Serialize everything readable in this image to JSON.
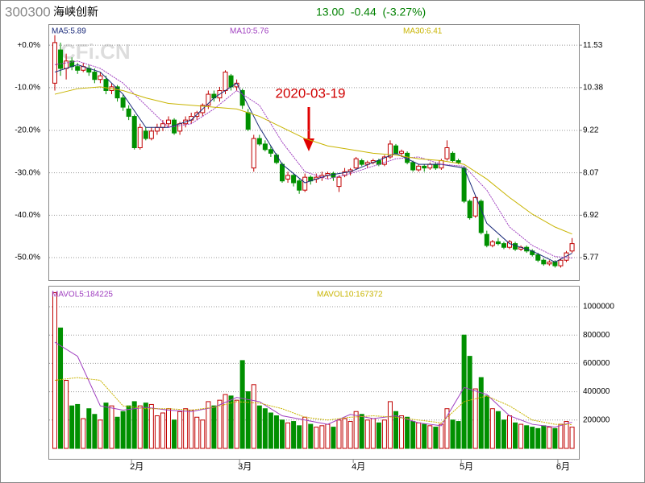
{
  "chart_data": {
    "type": "candlestick",
    "code": "300300",
    "name": "海峡创新",
    "quote": "13.00  -0.44  (-3.27%)",
    "watermark": "CFi.CN",
    "annotation": "2020-03-19",
    "categories": [
      null,
      null,
      null,
      null,
      null,
      null,
      null,
      null,
      null,
      null,
      null,
      null,
      null,
      null,
      "2月",
      null,
      null,
      null,
      null,
      null,
      null,
      null,
      null,
      null,
      null,
      null,
      null,
      null,
      null,
      null,
      null,
      null,
      null,
      "3月",
      null,
      null,
      null,
      null,
      null,
      null,
      null,
      null,
      null,
      null,
      null,
      null,
      null,
      null,
      null,
      null,
      null,
      null,
      null,
      "4月",
      null,
      null,
      null,
      null,
      null,
      null,
      null,
      null,
      null,
      null,
      null,
      null,
      null,
      null,
      null,
      null,
      null,
      null,
      "5月",
      null,
      null,
      null,
      null,
      null,
      null,
      null,
      null,
      null,
      null,
      null,
      null,
      null,
      null,
      null,
      null,
      "6月",
      null,
      null
    ],
    "open": [
      10.5,
      11.4,
      10.9,
      11.1,
      10.95,
      10.85,
      10.9,
      10.8,
      10.6,
      10.6,
      10.3,
      10.4,
      10.1,
      9.8,
      9.6,
      8.75,
      9.2,
      9.0,
      9.2,
      9.3,
      9.4,
      9.5,
      9.2,
      9.4,
      9.5,
      9.6,
      9.7,
      9.9,
      10.2,
      10.1,
      10.3,
      10.7,
      10.4,
      10.3,
      9.7,
      8.2,
      9.0,
      8.85,
      8.7,
      8.55,
      8.3,
      7.9,
      8.0,
      7.85,
      7.6,
      7.95,
      7.9,
      7.95,
      8.0,
      8.05,
      7.7,
      8.0,
      8.1,
      8.2,
      8.4,
      8.3,
      8.35,
      8.4,
      8.3,
      8.5,
      8.8,
      8.6,
      8.6,
      8.35,
      8.15,
      8.25,
      8.2,
      8.3,
      8.2,
      8.45,
      8.6,
      8.4,
      8.2,
      7.3,
      6.9,
      7.3,
      6.4,
      6.1,
      6.2,
      6.15,
      6.05,
      6.15,
      6.0,
      6.05,
      5.95,
      5.85,
      5.7,
      5.6,
      5.65,
      5.55,
      5.7,
      5.95
    ],
    "high": [
      11.8,
      11.6,
      11.3,
      11.2,
      11.05,
      11.05,
      11.0,
      10.9,
      10.8,
      10.7,
      10.5,
      10.45,
      10.2,
      9.9,
      9.65,
      9.4,
      9.3,
      9.3,
      9.4,
      9.5,
      9.6,
      9.55,
      9.45,
      9.6,
      9.7,
      9.75,
      9.95,
      10.3,
      10.3,
      10.4,
      10.85,
      10.75,
      10.6,
      10.35,
      9.8,
      9.1,
      9.1,
      8.95,
      8.8,
      8.6,
      8.35,
      8.1,
      8.05,
      7.9,
      8.05,
      8.0,
      8.05,
      8.1,
      8.1,
      8.1,
      8.0,
      8.2,
      8.2,
      8.5,
      8.45,
      8.4,
      8.45,
      8.45,
      8.55,
      8.95,
      8.85,
      8.7,
      8.65,
      8.4,
      8.3,
      8.3,
      8.35,
      8.35,
      8.45,
      8.95,
      8.65,
      8.45,
      8.25,
      7.35,
      7.45,
      7.35,
      6.5,
      6.25,
      6.3,
      6.2,
      6.25,
      6.2,
      6.1,
      6.1,
      6.0,
      5.9,
      5.75,
      5.7,
      5.7,
      5.75,
      5.95,
      6.3
    ],
    "low": [
      10.3,
      10.7,
      10.6,
      10.85,
      10.75,
      10.8,
      10.7,
      10.5,
      10.5,
      10.2,
      10.2,
      10.0,
      9.75,
      9.5,
      8.7,
      8.7,
      8.95,
      8.95,
      9.1,
      9.2,
      9.3,
      9.1,
      9.1,
      9.3,
      9.4,
      9.5,
      9.6,
      9.8,
      10.0,
      10.0,
      10.2,
      10.3,
      10.3,
      9.8,
      9.2,
      8.1,
      8.8,
      8.65,
      8.5,
      8.3,
      7.8,
      7.8,
      7.7,
      7.5,
      7.55,
      7.75,
      7.8,
      7.85,
      7.9,
      7.85,
      7.55,
      7.95,
      8.0,
      8.15,
      8.25,
      8.2,
      8.3,
      8.25,
      8.25,
      8.45,
      8.55,
      8.5,
      8.3,
      8.1,
      8.1,
      8.1,
      8.15,
      8.15,
      8.15,
      8.4,
      8.35,
      8.3,
      7.25,
      6.8,
      6.85,
      6.4,
      6.05,
      6.05,
      6.1,
      6.0,
      6.0,
      5.95,
      5.95,
      5.9,
      5.8,
      5.65,
      5.55,
      5.55,
      5.5,
      5.5,
      5.65,
      5.9
    ],
    "close": [
      11.6,
      10.9,
      11.1,
      10.95,
      10.85,
      10.95,
      10.8,
      10.6,
      10.7,
      10.3,
      10.4,
      10.1,
      9.85,
      9.6,
      8.75,
      9.3,
      9.0,
      9.2,
      9.3,
      9.4,
      9.5,
      9.15,
      9.4,
      9.5,
      9.6,
      9.7,
      9.9,
      10.2,
      10.1,
      10.3,
      10.8,
      10.4,
      10.5,
      9.9,
      9.25,
      9.0,
      8.85,
      8.7,
      8.6,
      8.35,
      7.85,
      8.0,
      7.8,
      7.6,
      7.95,
      7.85,
      7.95,
      8.0,
      8.05,
      7.95,
      7.95,
      8.1,
      8.15,
      8.45,
      8.3,
      8.35,
      8.4,
      8.3,
      8.5,
      8.85,
      8.6,
      8.65,
      8.35,
      8.15,
      8.25,
      8.2,
      8.3,
      8.2,
      8.4,
      8.75,
      8.4,
      8.35,
      7.3,
      6.85,
      7.4,
      6.45,
      6.1,
      6.2,
      6.15,
      6.05,
      6.2,
      6.0,
      6.05,
      5.95,
      5.85,
      5.7,
      5.6,
      5.65,
      5.55,
      5.7,
      5.9,
      6.15
    ],
    "volume": [
      1100000,
      850000,
      480000,
      300000,
      310000,
      210000,
      280000,
      240000,
      200000,
      320000,
      300000,
      220000,
      260000,
      300000,
      330000,
      300000,
      320000,
      310000,
      230000,
      250000,
      280000,
      200000,
      260000,
      280000,
      270000,
      220000,
      200000,
      330000,
      300000,
      340000,
      380000,
      370000,
      340000,
      620000,
      400000,
      450000,
      300000,
      280000,
      250000,
      230000,
      200000,
      180000,
      190000,
      160000,
      220000,
      170000,
      150000,
      160000,
      170000,
      150000,
      200000,
      210000,
      190000,
      260000,
      240000,
      200000,
      210000,
      180000,
      200000,
      330000,
      260000,
      230000,
      220000,
      190000,
      180000,
      170000,
      160000,
      150000,
      170000,
      280000,
      200000,
      190000,
      800000,
      650000,
      420000,
      500000,
      370000,
      280000,
      260000,
      200000,
      230000,
      180000,
      170000,
      160000,
      150000,
      140000,
      160000,
      150000,
      140000,
      170000,
      190000,
      150000
    ],
    "up_color": "#c00000",
    "down_color": "#009000",
    "ylim": [
      5.16,
      12.1
    ],
    "yticks": [
      {
        "value": 11.53,
        "label": "+0.0%"
      },
      {
        "value": 10.38,
        "label": "-10.0%"
      },
      {
        "value": 9.22,
        "label": "-20.0%"
      },
      {
        "value": 8.07,
        "label": "-30.0%"
      },
      {
        "value": 6.92,
        "label": "-40.0%"
      },
      {
        "value": 5.77,
        "label": "-50.0%"
      }
    ],
    "y2lim": [
      5.16,
      12.1
    ],
    "y2ticks": [
      11.53,
      10.38,
      9.22,
      8.07,
      6.92,
      5.77
    ],
    "volume_ylim": [
      -74000,
      1148000
    ],
    "volume_yticks": [
      200000,
      400000,
      600000,
      800000,
      1000000
    ],
    "grid": true,
    "ma": {
      "x": [
        0,
        4,
        8,
        12,
        16,
        20,
        24,
        28,
        32,
        36,
        40,
        44,
        48,
        52,
        56,
        60,
        64,
        68,
        72,
        76,
        80,
        84,
        88,
        91
      ],
      "series": [
        {
          "name": "MA5:5.89",
          "color": "#1a2a7a",
          "values": [
            10.8,
            11.0,
            10.8,
            10.2,
            9.3,
            9.3,
            9.5,
            10.1,
            10.5,
            9.3,
            8.3,
            7.8,
            8.0,
            8.1,
            8.35,
            8.6,
            8.3,
            8.3,
            8.2,
            6.7,
            6.15,
            5.95,
            5.65,
            5.89
          ]
        },
        {
          "name": "MA10:5.76",
          "color": "#a040c0",
          "values": [
            11.0,
            11.1,
            10.9,
            10.5,
            9.9,
            9.3,
            9.4,
            9.8,
            10.3,
            9.9,
            8.9,
            8.1,
            7.9,
            8.05,
            8.25,
            8.45,
            8.5,
            8.3,
            8.25,
            7.6,
            6.6,
            6.1,
            5.8,
            5.76
          ]
        },
        {
          "name": "MA30:6.41",
          "color": "#c8b400",
          "values": [
            10.2,
            10.35,
            10.4,
            10.3,
            10.1,
            9.95,
            9.9,
            9.85,
            9.8,
            9.6,
            9.3,
            9.0,
            8.8,
            8.7,
            8.6,
            8.55,
            8.45,
            8.4,
            8.3,
            7.9,
            7.4,
            6.95,
            6.6,
            6.41
          ]
        }
      ]
    },
    "volume_ma": {
      "x": [
        0,
        4,
        8,
        12,
        16,
        20,
        24,
        28,
        32,
        36,
        40,
        44,
        48,
        52,
        56,
        60,
        64,
        68,
        72,
        76,
        80,
        84,
        88,
        91
      ],
      "series": [
        {
          "name": "MAVOL5:184225",
          "color": "#a040c0",
          "values": [
            750000,
            650000,
            300000,
            270000,
            290000,
            270000,
            260000,
            290000,
            360000,
            330000,
            230000,
            200000,
            170000,
            240000,
            210000,
            230000,
            180000,
            160000,
            430000,
            380000,
            230000,
            170000,
            150000,
            184225
          ]
        },
        {
          "name": "MAVOL10:167372",
          "color": "#c8b400",
          "values": [
            480000,
            500000,
            480000,
            300000,
            280000,
            280000,
            270000,
            290000,
            330000,
            320000,
            280000,
            220000,
            200000,
            220000,
            230000,
            220000,
            200000,
            180000,
            330000,
            370000,
            300000,
            200000,
            170000,
            167372
          ]
        }
      ]
    }
  }
}
